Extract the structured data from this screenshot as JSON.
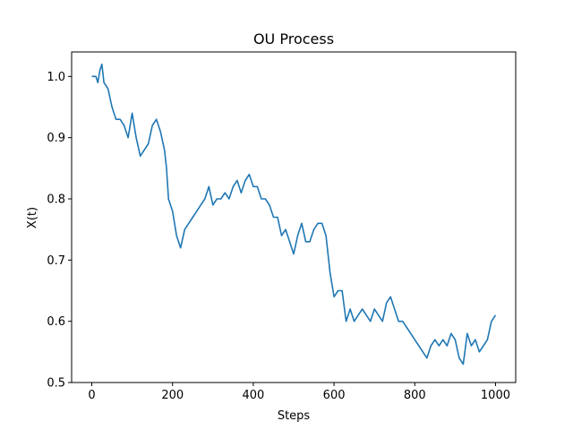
{
  "chart_data": {
    "type": "line",
    "title": "OU Process",
    "xlabel": "Steps",
    "ylabel": "X(t)",
    "xlim": [
      -50,
      1050
    ],
    "ylim": [
      0.5,
      1.04
    ],
    "xticks": [
      0,
      200,
      400,
      600,
      800,
      1000
    ],
    "yticks": [
      0.5,
      0.6,
      0.7,
      0.8,
      0.9,
      1.0
    ],
    "xtick_labels": [
      "0",
      "200",
      "400",
      "600",
      "800",
      "1000"
    ],
    "ytick_labels": [
      "0.5",
      "0.6",
      "0.7",
      "0.8",
      "0.9",
      "1.0"
    ],
    "grid": false,
    "series": [
      {
        "color": "#1f77b4",
        "x": [
          0,
          10,
          15,
          20,
          25,
          30,
          40,
          50,
          55,
          60,
          70,
          80,
          90,
          100,
          110,
          120,
          130,
          140,
          150,
          160,
          170,
          180,
          185,
          190,
          200,
          210,
          220,
          230,
          240,
          250,
          260,
          270,
          280,
          290,
          300,
          310,
          320,
          330,
          340,
          350,
          360,
          370,
          380,
          390,
          400,
          410,
          420,
          430,
          440,
          450,
          460,
          470,
          480,
          490,
          500,
          510,
          520,
          530,
          540,
          550,
          560,
          570,
          580,
          590,
          600,
          610,
          620,
          630,
          640,
          650,
          660,
          670,
          680,
          690,
          700,
          710,
          720,
          730,
          740,
          750,
          760,
          770,
          780,
          790,
          800,
          810,
          820,
          830,
          840,
          850,
          860,
          870,
          880,
          890,
          900,
          910,
          920,
          930,
          940,
          950,
          960,
          970,
          980,
          990,
          1000
        ],
        "y": [
          1.0,
          1.0,
          0.99,
          1.01,
          1.02,
          0.99,
          0.98,
          0.95,
          0.94,
          0.93,
          0.93,
          0.92,
          0.9,
          0.94,
          0.9,
          0.87,
          0.88,
          0.89,
          0.92,
          0.93,
          0.91,
          0.88,
          0.85,
          0.8,
          0.78,
          0.74,
          0.72,
          0.75,
          0.76,
          0.77,
          0.78,
          0.79,
          0.8,
          0.82,
          0.79,
          0.8,
          0.8,
          0.81,
          0.8,
          0.82,
          0.83,
          0.81,
          0.83,
          0.84,
          0.82,
          0.82,
          0.8,
          0.8,
          0.79,
          0.77,
          0.77,
          0.74,
          0.75,
          0.73,
          0.71,
          0.74,
          0.76,
          0.73,
          0.73,
          0.75,
          0.76,
          0.76,
          0.74,
          0.68,
          0.64,
          0.65,
          0.65,
          0.6,
          0.62,
          0.6,
          0.61,
          0.62,
          0.61,
          0.6,
          0.62,
          0.61,
          0.6,
          0.63,
          0.64,
          0.62,
          0.6,
          0.6,
          0.59,
          0.58,
          0.57,
          0.56,
          0.55,
          0.54,
          0.56,
          0.57,
          0.56,
          0.57,
          0.56,
          0.58,
          0.57,
          0.54,
          0.53,
          0.58,
          0.56,
          0.57,
          0.55,
          0.56,
          0.57,
          0.6,
          0.61
        ]
      }
    ]
  }
}
